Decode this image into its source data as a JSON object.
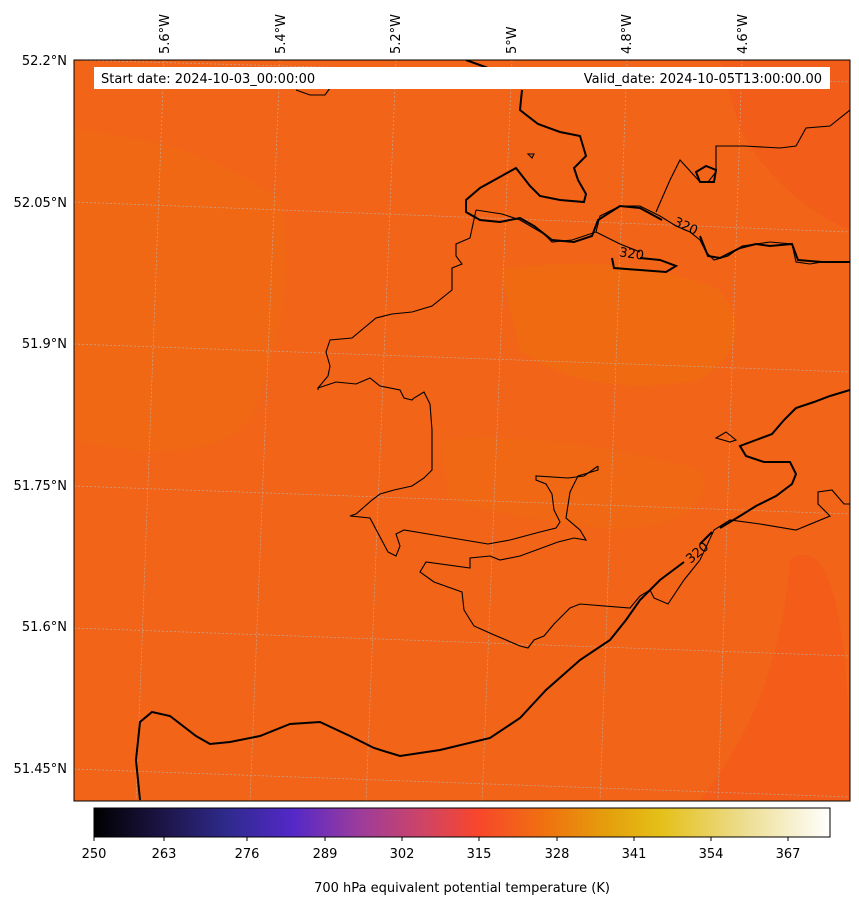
{
  "header": {
    "start_date": "Start date: 2024-10-03_00:00:00",
    "valid_date": "Valid_date: 2024-10-05T13:00:00.00"
  },
  "map": {
    "longitude_labels": [
      "5.6°W",
      "5.4°W",
      "5.2°W",
      "5°W",
      "4.8°W",
      "4.6°W"
    ],
    "latitude_labels": [
      "52.2°N",
      "52.05°N",
      "51.9°N",
      "51.75°N",
      "51.6°N",
      "51.45°N"
    ],
    "contour_labels": [
      "320",
      "320",
      "320"
    ],
    "field_colors": [
      "#f26418",
      "#ec6b10",
      "#f05a18"
    ]
  },
  "colorbar": {
    "tick_labels": [
      "250",
      "263",
      "276",
      "289",
      "302",
      "315",
      "328",
      "341",
      "354",
      "367"
    ],
    "label": "700 hPa equivalent potential temperature (K)",
    "colormap": [
      "#000000",
      "#1c1444",
      "#2e2a8c",
      "#5428c8",
      "#9c3c9c",
      "#d04464",
      "#f8462c",
      "#f07010",
      "#e4a00c",
      "#e4c018",
      "#ecdc8c",
      "#ffffff"
    ]
  }
}
